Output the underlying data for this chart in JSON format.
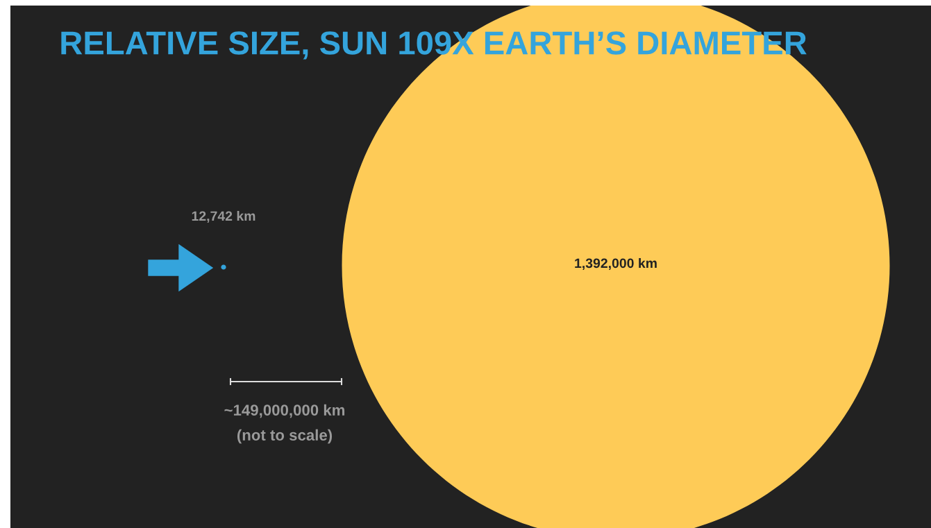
{
  "chart_data": {
    "type": "other",
    "title": "RELATIVE SIZE, SUN 109X EARTH’S DIAMETER",
    "categories": [
      null,
      null
    ],
    "values": [
      12742,
      1392000
    ],
    "colors": [
      "#34a4dc",
      "#fecb57"
    ],
    "value_labels": [
      "12,742 km",
      "1,392,000 km"
    ],
    "annotations": [
      "~149,000,000 km",
      "(not to scale)"
    ]
  }
}
